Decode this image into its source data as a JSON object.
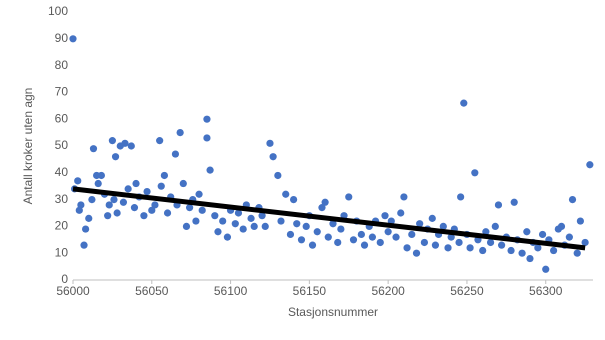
{
  "chart_data": {
    "type": "scatter",
    "x_label": "Stasjonsnummer",
    "y_label": "Antall kroker uten agn",
    "xlim": [
      56000,
      56330
    ],
    "xticks": [
      56000,
      56050,
      56100,
      56150,
      56200,
      56250,
      56300
    ],
    "ylim": [
      0,
      100
    ],
    "yticks": [
      0,
      10,
      20,
      30,
      40,
      50,
      60,
      70,
      80,
      90,
      100
    ],
    "grid": false,
    "color": "#4472c4",
    "x": [
      56000,
      56001,
      56003,
      56004,
      56005,
      56007,
      56008,
      56010,
      56012,
      56013,
      56015,
      56016,
      56018,
      56020,
      56022,
      56023,
      56025,
      56026,
      56027,
      56028,
      56030,
      56032,
      56033,
      56035,
      56037,
      56039,
      56040,
      56042,
      56045,
      56047,
      56050,
      56052,
      56055,
      56056,
      56058,
      56060,
      56062,
      56065,
      56066,
      56068,
      56070,
      56072,
      56074,
      56076,
      56078,
      56080,
      56082,
      56085,
      56085,
      56087,
      56090,
      56092,
      56095,
      56098,
      56100,
      56103,
      56105,
      56108,
      56110,
      56113,
      56115,
      56118,
      56120,
      56122,
      56125,
      56127,
      56130,
      56132,
      56135,
      56138,
      56140,
      56142,
      56145,
      56148,
      56150,
      56152,
      56155,
      56158,
      56160,
      56162,
      56165,
      56168,
      56170,
      56172,
      56175,
      56178,
      56180,
      56183,
      56185,
      56188,
      56190,
      56192,
      56195,
      56198,
      56200,
      56202,
      56205,
      56208,
      56210,
      56212,
      56215,
      56218,
      56220,
      56223,
      56225,
      56228,
      56230,
      56232,
      56235,
      56238,
      56240,
      56242,
      56245,
      56246,
      56248,
      56250,
      56252,
      56255,
      56257,
      56260,
      56262,
      56265,
      56268,
      56270,
      56272,
      56275,
      56278,
      56280,
      56282,
      56285,
      56288,
      56290,
      56292,
      56295,
      56298,
      56300,
      56302,
      56305,
      56308,
      56310,
      56312,
      56315,
      56317,
      56320,
      56322,
      56325,
      56328
    ],
    "values": [
      90,
      34,
      37,
      26,
      28,
      13,
      19,
      23,
      30,
      49,
      39,
      36,
      39,
      32,
      24,
      28,
      52,
      30,
      46,
      25,
      50,
      29,
      51,
      34,
      50,
      27,
      36,
      31,
      24,
      33,
      26,
      28,
      52,
      35,
      39,
      25,
      31,
      47,
      28,
      55,
      36,
      20,
      27,
      30,
      22,
      32,
      26,
      60,
      53,
      41,
      24,
      18,
      22,
      16,
      26,
      21,
      25,
      19,
      28,
      23,
      20,
      27,
      24,
      20,
      51,
      46,
      39,
      22,
      32,
      17,
      30,
      21,
      15,
      20,
      24,
      13,
      18,
      27,
      29,
      16,
      21,
      14,
      19,
      24,
      31,
      15,
      22,
      17,
      13,
      20,
      16,
      22,
      14,
      24,
      18,
      22,
      16,
      25,
      31,
      12,
      17,
      10,
      21,
      14,
      19,
      23,
      13,
      17,
      20,
      12,
      16,
      19,
      14,
      31,
      66,
      17,
      12,
      40,
      15,
      11,
      18,
      14,
      20,
      28,
      13,
      16,
      11,
      29,
      15,
      10,
      18,
      8,
      14,
      12,
      17,
      4,
      15,
      11,
      19,
      20,
      13,
      16,
      30,
      10,
      22,
      14,
      43
    ],
    "trendline": {
      "x": [
        56000,
        56325
      ],
      "values": [
        34,
        12
      ],
      "color": "#000000"
    }
  }
}
